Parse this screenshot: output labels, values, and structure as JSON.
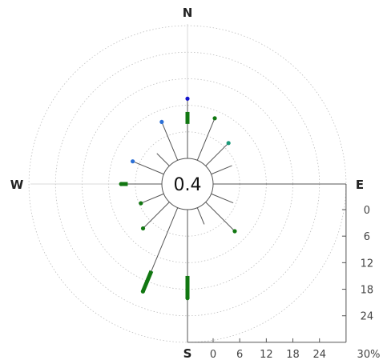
{
  "chart_data": {
    "type": "polar-windrose",
    "title": "",
    "center_label": "0.4",
    "directions": {
      "n": "N",
      "e": "E",
      "s": "S",
      "w": "W"
    },
    "radial_rings": [
      6,
      12,
      18,
      24,
      30
    ],
    "radial_ticks": [
      "0",
      "6",
      "12",
      "18",
      "24"
    ],
    "radial_unit_label": "30%",
    "grid": true,
    "speed_colors": [
      "#2aa02a",
      "#117711",
      "#1a9a3a",
      "#2b6fd6",
      "#1515cc"
    ],
    "petals": [
      {
        "angle": 0,
        "value": 13.5,
        "segments": [
          {
            "from": 7.8,
            "to": 10.5,
            "color": "#117711"
          }
        ],
        "tip": "#1515cc"
      },
      {
        "angle": 22.5,
        "value": 10.3,
        "segments": [],
        "tip": "#117711"
      },
      {
        "angle": 45,
        "value": 7.3,
        "segments": [],
        "tip": "#1a9a7a"
      },
      {
        "angle": 67.5,
        "value": 5.0,
        "segments": [],
        "tip": "#888"
      },
      {
        "angle": 90,
        "value": 4.4,
        "segments": [],
        "tip": "#888"
      },
      {
        "angle": 112.5,
        "value": 5.3,
        "segments": [],
        "tip": "#888"
      },
      {
        "angle": 135,
        "value": 9.3,
        "segments": [],
        "tip": "#117711"
      },
      {
        "angle": 157.5,
        "value": 4.0,
        "segments": [],
        "tip": "#888"
      },
      {
        "angle": 180,
        "value": 20.0,
        "segments": [
          {
            "from": 15.0,
            "to": 20.0,
            "color": "#117711"
          }
        ],
        "tip": "#117711"
      },
      {
        "angle": 202.5,
        "value": 20.5,
        "segments": [
          {
            "from": 15.5,
            "to": 20.5,
            "color": "#117711"
          }
        ],
        "tip": "#117711"
      },
      {
        "angle": 225,
        "value": 8.4,
        "segments": [],
        "tip": "#117711"
      },
      {
        "angle": 247.5,
        "value": 5.6,
        "segments": [],
        "tip": "#117711"
      },
      {
        "angle": 270,
        "value": 9.2,
        "segments": [
          {
            "from": 7.7,
            "to": 9.2,
            "color": "#117711"
          }
        ],
        "tip": "#117711"
      },
      {
        "angle": 292.5,
        "value": 7.6,
        "segments": [],
        "tip": "#2b6fd6"
      },
      {
        "angle": 315,
        "value": 3.9,
        "segments": [],
        "tip": "#888"
      },
      {
        "angle": 337.5,
        "value": 9.4,
        "segments": [],
        "tip": "#2b6fd6"
      }
    ]
  }
}
